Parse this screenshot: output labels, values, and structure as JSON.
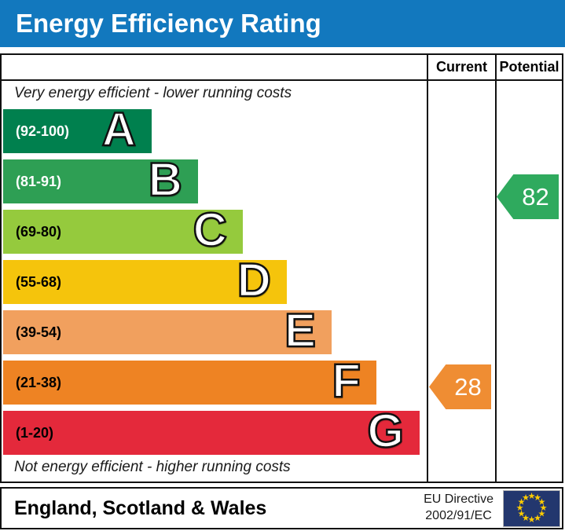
{
  "title": "Energy Efficiency Rating",
  "columns": {
    "current": "Current",
    "potential": "Potential"
  },
  "captions": {
    "top": "Very energy efficient - lower running costs",
    "bottom": "Not energy efficient - higher running costs"
  },
  "chart_data": {
    "type": "bar",
    "title": "Energy Efficiency Rating",
    "bands": [
      {
        "letter": "A",
        "label": "(92-100)",
        "min": 92,
        "max": 100,
        "color": "#00804e"
      },
      {
        "letter": "B",
        "label": "(81-91)",
        "min": 81,
        "max": 91,
        "color": "#2e9f54"
      },
      {
        "letter": "C",
        "label": "(69-80)",
        "min": 69,
        "max": 80,
        "color": "#95ca3d"
      },
      {
        "letter": "D",
        "label": "(55-68)",
        "min": 55,
        "max": 68,
        "color": "#f5c40c"
      },
      {
        "letter": "E",
        "label": "(39-54)",
        "min": 39,
        "max": 54,
        "color": "#f1a05e"
      },
      {
        "letter": "F",
        "label": "(21-38)",
        "min": 21,
        "max": 38,
        "color": "#ee8323"
      },
      {
        "letter": "G",
        "label": "(1-20)",
        "min": 1,
        "max": 20,
        "color": "#e4293b"
      }
    ],
    "current_rating": {
      "value": "28",
      "band": "F",
      "color": "#ef8d33"
    },
    "potential_rating": {
      "value": "82",
      "band": "B",
      "color": "#2faa5e"
    }
  },
  "footer": {
    "region": "England, Scotland & Wales",
    "directive_line1": "EU Directive",
    "directive_line2": "2002/91/EC",
    "flag": {
      "star_glyph": "★",
      "star_count": 12,
      "bg_color": "#23376e",
      "star_color": "#ffcc00"
    }
  },
  "theme": {
    "title_bg": "#1278be",
    "title_text": "#ffffff",
    "border_color": "#111111"
  }
}
